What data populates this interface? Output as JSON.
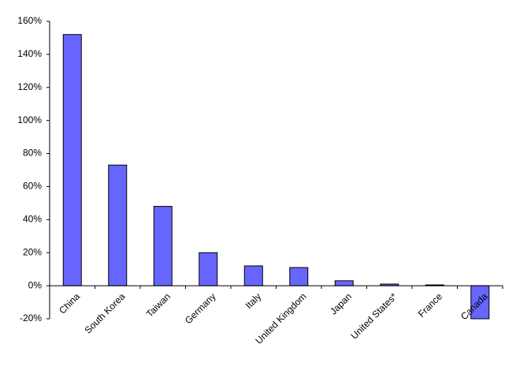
{
  "chart_data": {
    "type": "bar",
    "categories": [
      "China",
      "South Korea",
      "Taiwan",
      "Germany",
      "Italy",
      "United Kingdom",
      "Japan",
      "United States*",
      "France",
      "Canada"
    ],
    "values": [
      152,
      73,
      48,
      20,
      12,
      11,
      3,
      1,
      0.5,
      -20
    ],
    "color": "#6666ff",
    "ylim": [
      -20,
      160
    ],
    "yticks": [
      {
        "value": -20,
        "label": "-20%"
      },
      {
        "value": 0,
        "label": "0%"
      },
      {
        "value": 20,
        "label": "20%"
      },
      {
        "value": 40,
        "label": "40%"
      },
      {
        "value": 60,
        "label": "60%"
      },
      {
        "value": 80,
        "label": "80%"
      },
      {
        "value": 100,
        "label": "100%"
      },
      {
        "value": 120,
        "label": "120%"
      },
      {
        "value": 140,
        "label": "140%"
      },
      {
        "value": 160,
        "label": "160%"
      }
    ],
    "grid": false
  }
}
